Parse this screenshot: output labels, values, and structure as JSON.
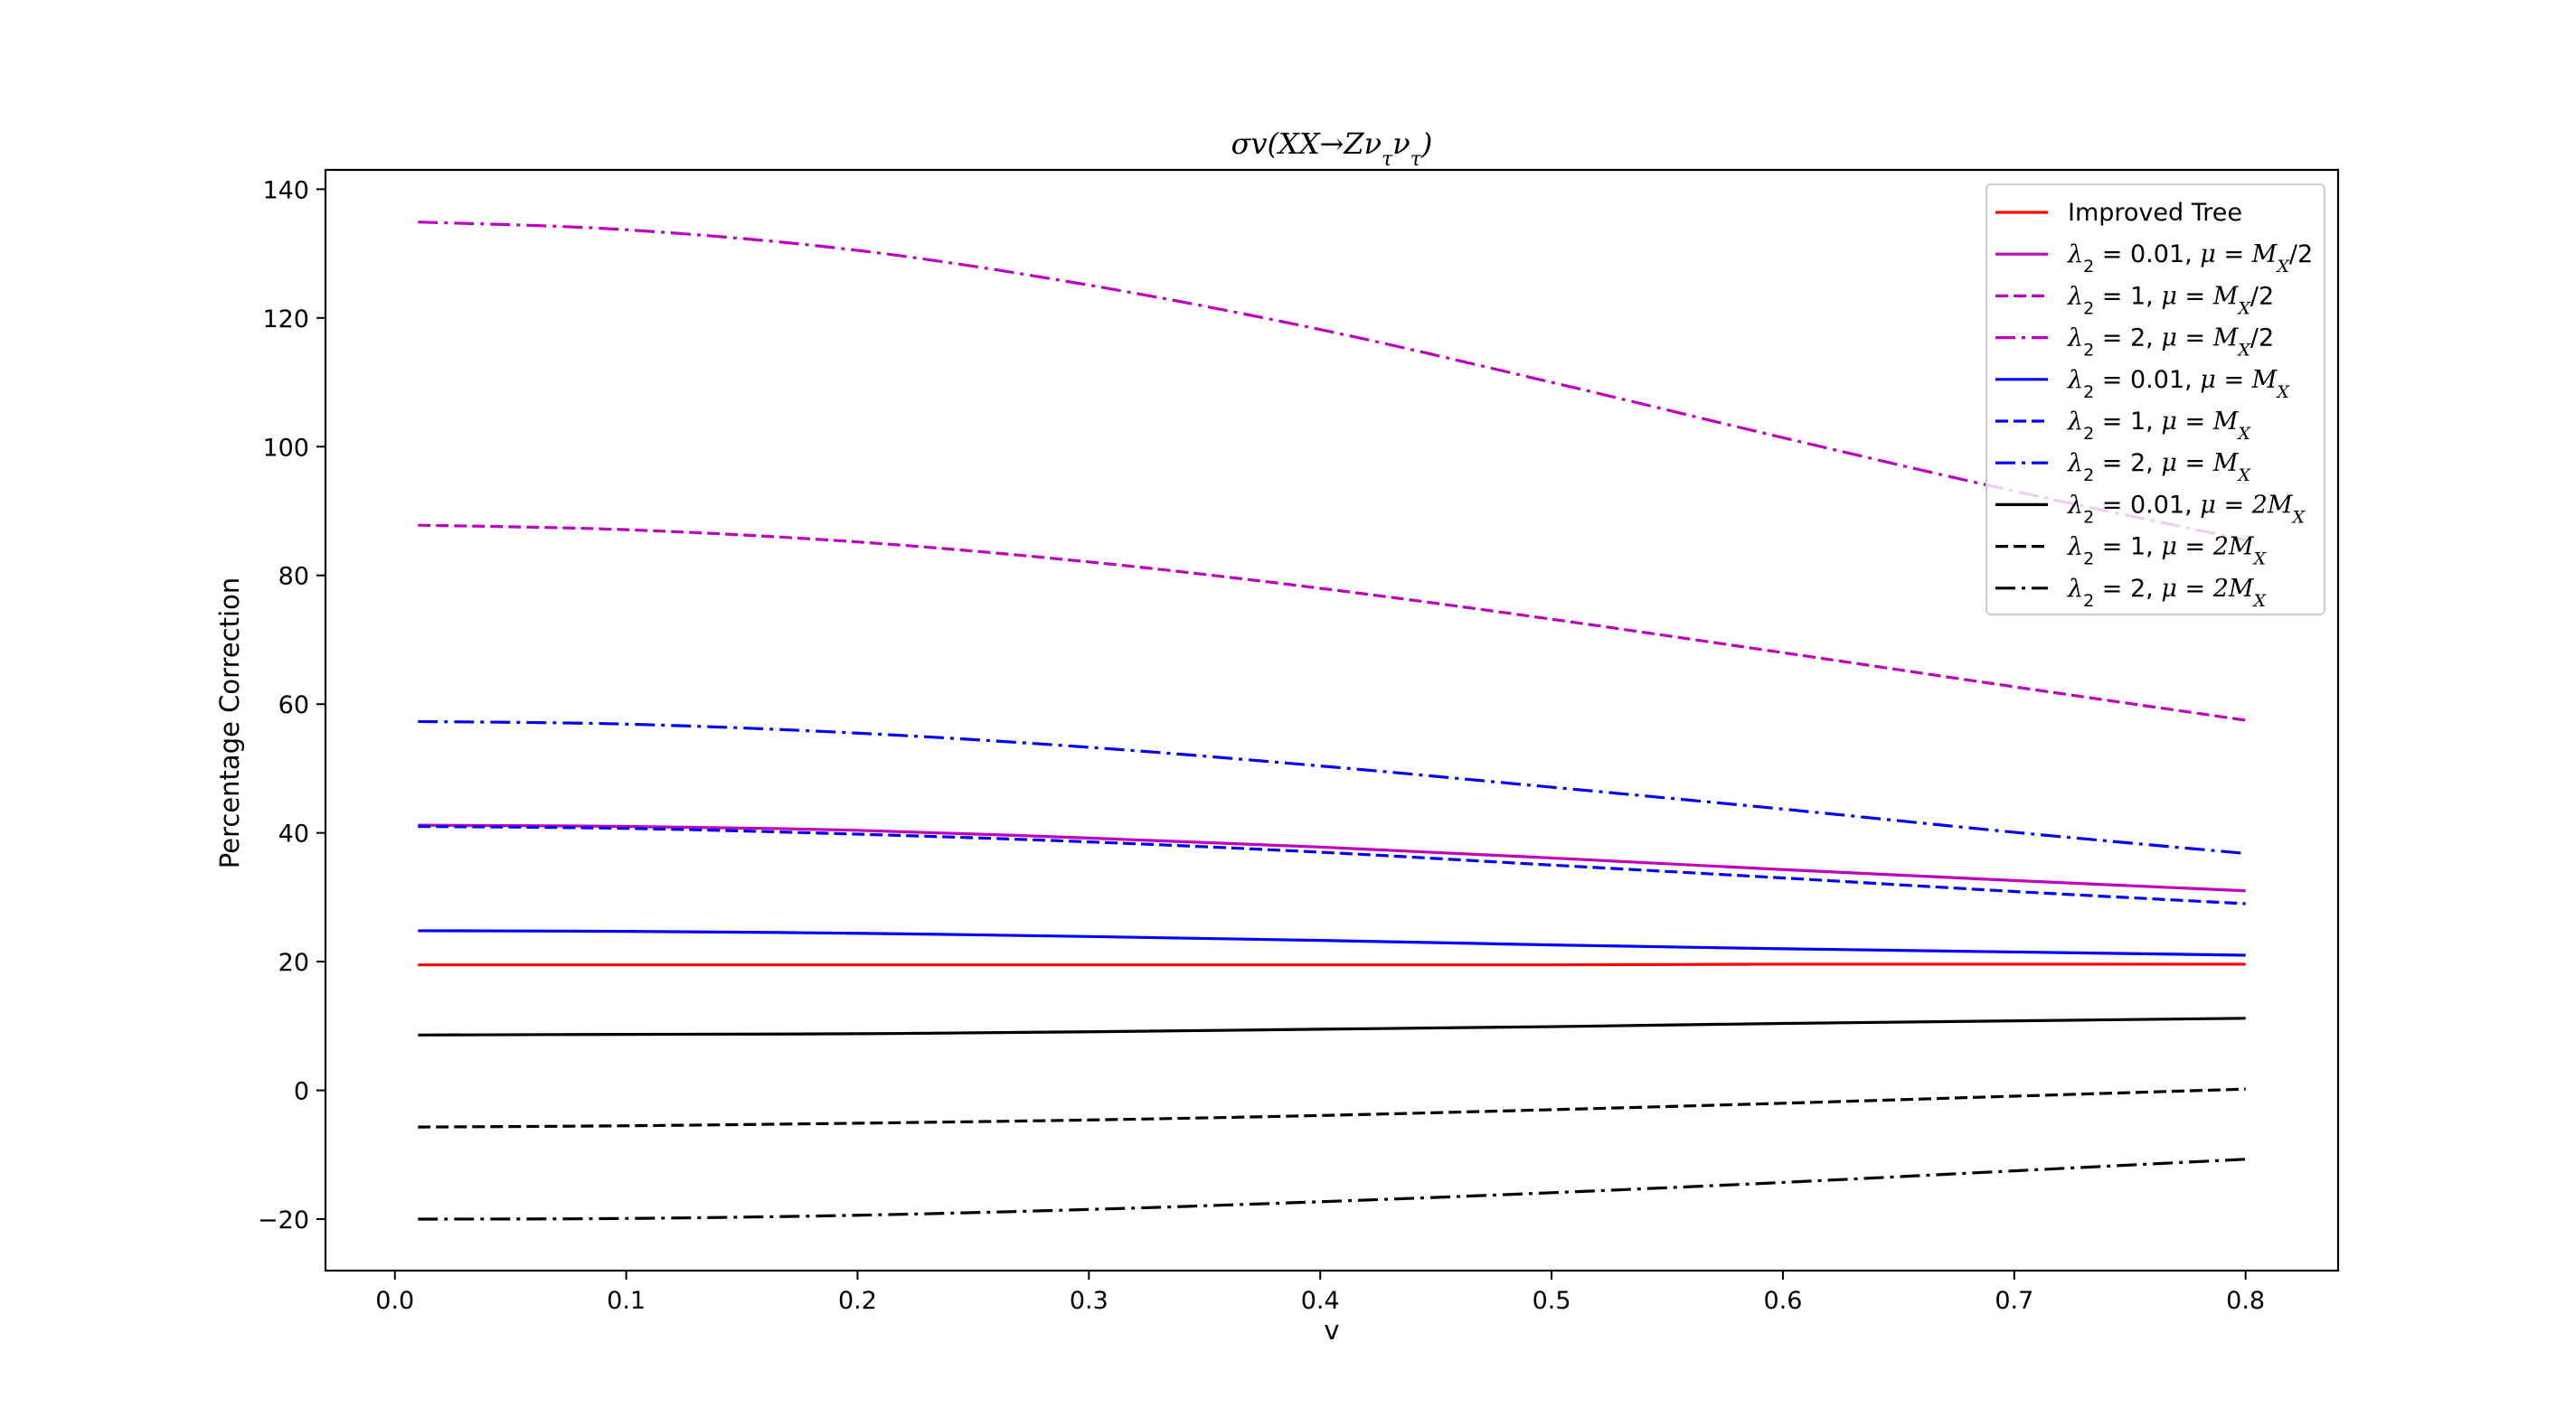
{
  "chart_data": {
    "type": "line",
    "title": "σv(XX→Zν_τν_τ)",
    "title_parts": {
      "main": "σv(XX→Zν",
      "sub1": "τ",
      "mid": "ν",
      "sub2": "τ",
      "end": ")"
    },
    "xlabel": "v",
    "ylabel": "Percentage Correction",
    "xlim": [
      -0.03,
      0.84
    ],
    "ylim": [
      -28,
      143
    ],
    "xticks": [
      0.0,
      0.1,
      0.2,
      0.3,
      0.4,
      0.5,
      0.6,
      0.7,
      0.8
    ],
    "xtick_labels": [
      "0.0",
      "0.1",
      "0.2",
      "0.3",
      "0.4",
      "0.5",
      "0.6",
      "0.7",
      "0.8"
    ],
    "yticks": [
      -20,
      0,
      20,
      40,
      60,
      80,
      100,
      120,
      140
    ],
    "ytick_labels": [
      "−20",
      "0",
      "20",
      "40",
      "60",
      "80",
      "100",
      "120",
      "140"
    ],
    "grid": false,
    "legend_position": "top-right",
    "x": [
      0.01,
      0.1,
      0.2,
      0.3,
      0.4,
      0.5,
      0.6,
      0.7,
      0.8
    ],
    "series": [
      {
        "name": "Improved Tree",
        "label_parts": {
          "text": "Improved Tree"
        },
        "color": "#ff0000",
        "dash": "solid",
        "values": [
          19.5,
          19.5,
          19.5,
          19.5,
          19.5,
          19.5,
          19.6,
          19.6,
          19.6
        ]
      },
      {
        "name": "λ2 = 0.01, μ = MX/2",
        "label_parts": {
          "lam": "0.01",
          "mu": "M",
          "muend": "/2"
        },
        "color": "#bf00bf",
        "dash": "solid",
        "values": [
          41.2,
          41.0,
          40.4,
          39.2,
          37.8,
          36.1,
          34.3,
          32.6,
          31.0
        ]
      },
      {
        "name": "λ2 = 1, μ = MX/2",
        "label_parts": {
          "lam": "1",
          "mu": "M",
          "muend": "/2"
        },
        "color": "#bf00bf",
        "dash": "dashed",
        "values": [
          87.8,
          87.1,
          85.2,
          82.1,
          78.0,
          73.2,
          68.0,
          62.7,
          57.5
        ]
      },
      {
        "name": "λ2 = 2, μ = MX/2",
        "label_parts": {
          "lam": "2",
          "mu": "M",
          "muend": "/2"
        },
        "color": "#bf00bf",
        "dash": "dashdot",
        "values": [
          134.9,
          133.7,
          130.5,
          125.1,
          118.2,
          110.0,
          101.4,
          93.1,
          85.5
        ]
      },
      {
        "name": "λ2 = 0.01, μ = MX",
        "label_parts": {
          "lam": "0.01",
          "mu": "M",
          "muend": ""
        },
        "color": "#0000ff",
        "dash": "solid",
        "values": [
          24.8,
          24.7,
          24.4,
          23.9,
          23.3,
          22.6,
          22.0,
          21.5,
          21.0
        ]
      },
      {
        "name": "λ2 = 1, μ = MX",
        "label_parts": {
          "lam": "1",
          "mu": "M",
          "muend": ""
        },
        "color": "#0000ff",
        "dash": "dashed",
        "values": [
          41.0,
          40.7,
          39.8,
          38.6,
          37.0,
          35.0,
          33.0,
          30.9,
          29.0
        ]
      },
      {
        "name": "λ2 = 2, μ = MX",
        "label_parts": {
          "lam": "2",
          "mu": "M",
          "muend": ""
        },
        "color": "#0000ff",
        "dash": "dashdot",
        "values": [
          57.3,
          56.9,
          55.5,
          53.3,
          50.4,
          47.1,
          43.7,
          40.1,
          36.8
        ]
      },
      {
        "name": "λ2 = 0.01, μ = 2MX",
        "label_parts": {
          "lam": "0.01",
          "mu": "2M",
          "muend": ""
        },
        "color": "#000000",
        "dash": "solid",
        "values": [
          8.6,
          8.7,
          8.8,
          9.1,
          9.5,
          9.9,
          10.4,
          10.8,
          11.2
        ]
      },
      {
        "name": "λ2 = 1, μ = 2MX",
        "label_parts": {
          "lam": "1",
          "mu": "2M",
          "muend": ""
        },
        "color": "#000000",
        "dash": "dashed",
        "values": [
          -5.7,
          -5.5,
          -5.1,
          -4.6,
          -3.9,
          -3.0,
          -2.0,
          -0.9,
          0.2
        ]
      },
      {
        "name": "λ2 = 2, μ = 2MX",
        "label_parts": {
          "lam": "2",
          "mu": "2M",
          "muend": ""
        },
        "color": "#000000",
        "dash": "dashdot",
        "values": [
          -20.0,
          -19.9,
          -19.4,
          -18.5,
          -17.3,
          -15.9,
          -14.3,
          -12.5,
          -10.7
        ]
      }
    ]
  }
}
